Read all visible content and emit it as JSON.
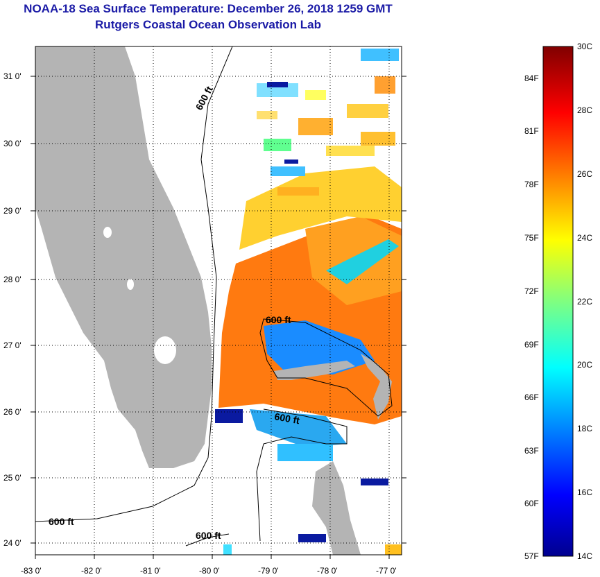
{
  "header": {
    "title": "NOAA-18 Sea Surface Temperature:  December 26, 2018 1259 GMT",
    "subtitle": "Rutgers Coastal Ocean Observation Lab"
  },
  "map": {
    "lon_labels": [
      "-83 0'",
      "-82 0'",
      "-81 0'",
      "-80 0'",
      "-79 0'",
      "-78 0'",
      "-77 0'"
    ],
    "lat_labels": [
      "31 0'",
      "30 0'",
      "29 0'",
      "28 0'",
      "27 0'",
      "26 0'",
      "25 0'",
      "24 0'"
    ],
    "contour_labels": [
      "600 ft",
      "600 ft",
      "600 ft",
      "600 ft",
      "600 ft"
    ],
    "land_color": "#b4b4b4"
  },
  "colorbar": {
    "fahrenheit": [
      "84F",
      "81F",
      "78F",
      "75F",
      "72F",
      "69F",
      "66F",
      "63F",
      "60F",
      "57F"
    ],
    "celsius": [
      "30C",
      "28C",
      "26C",
      "24C",
      "22C",
      "20C",
      "18C",
      "16C",
      "14C"
    ],
    "range_c": [
      14,
      30
    ]
  }
}
